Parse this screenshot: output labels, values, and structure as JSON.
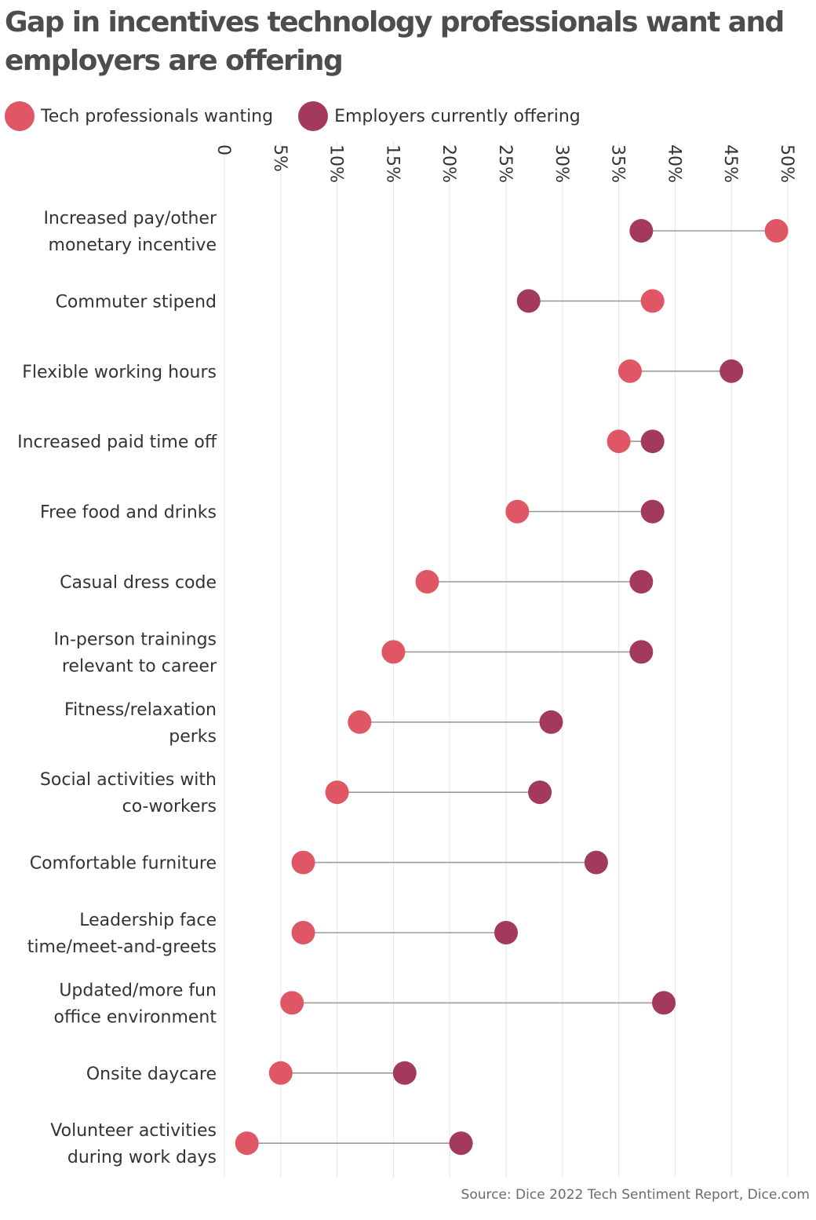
{
  "title": "Gap in incentives technology professionals want and employers are offering",
  "legend": {
    "wanting_label": "Tech professionals wanting",
    "offering_label": "Employers currently offering"
  },
  "source": "Source: Dice 2022 Tech Sentiment Report, Dice.com",
  "colors": {
    "wanting": "#df5664",
    "offering": "#a33a5e",
    "connector": "#a09a94",
    "grid": "#e6e6e6"
  },
  "chart_data": {
    "type": "dumbbell",
    "x_ticks": [
      "0",
      "5%",
      "10%",
      "15%",
      "20%",
      "25%",
      "30%",
      "35%",
      "40%",
      "45%",
      "50%"
    ],
    "xlim": [
      0,
      50
    ],
    "x_unit": "%",
    "grid": true,
    "legend_position": "top-left",
    "categories": [
      [
        "Increased pay/other",
        "monetary incentive"
      ],
      [
        "Commuter stipend"
      ],
      [
        "Flexible working hours"
      ],
      [
        "Increased paid time off"
      ],
      [
        "Free food and drinks"
      ],
      [
        "Casual dress code"
      ],
      [
        "In-person trainings",
        "relevant to career"
      ],
      [
        "Fitness/relaxation",
        "perks"
      ],
      [
        "Social activities with",
        "co-workers"
      ],
      [
        "Comfortable furniture"
      ],
      [
        "Leadership face",
        "time/meet-and-greets"
      ],
      [
        "Updated/more fun",
        "office environment"
      ],
      [
        "Onsite daycare"
      ],
      [
        "Volunteer activities",
        "during work days"
      ]
    ],
    "series": [
      {
        "name": "Tech professionals wanting",
        "values": [
          49,
          38,
          36,
          35,
          26,
          18,
          15,
          12,
          10,
          7,
          7,
          6,
          5,
          2
        ]
      },
      {
        "name": "Employers currently offering",
        "values": [
          37,
          27,
          45,
          38,
          38,
          37,
          37,
          29,
          28,
          33,
          25,
          39,
          16,
          21
        ]
      }
    ]
  }
}
